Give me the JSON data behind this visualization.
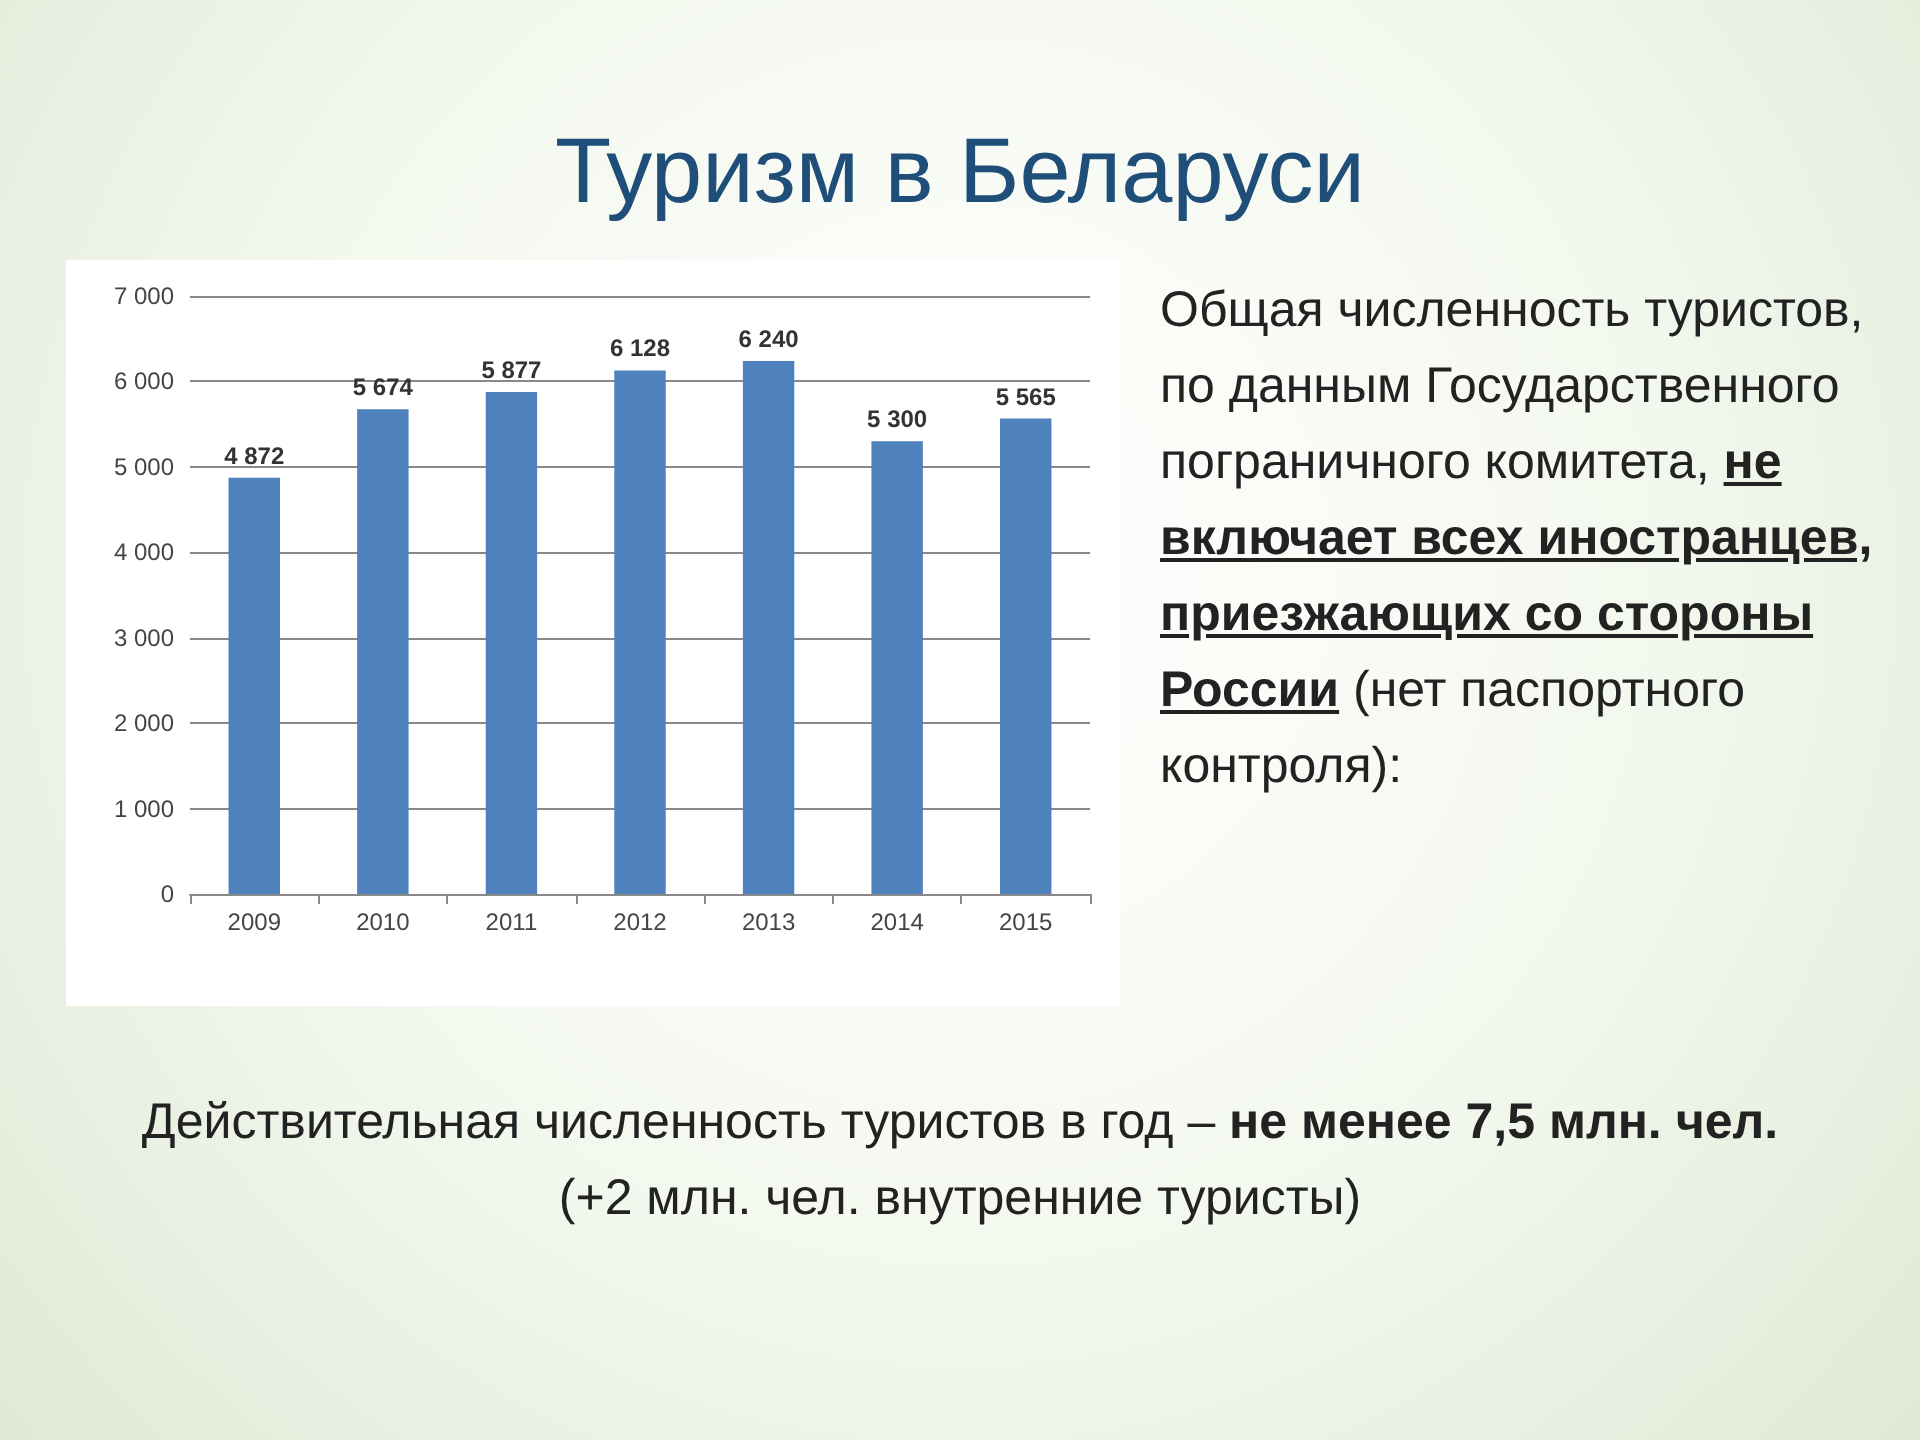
{
  "chart_data": {
    "type": "bar",
    "title": "Туризм в Беларуси",
    "categories": [
      "2009",
      "2010",
      "2011",
      "2012",
      "2013",
      "2014",
      "2015"
    ],
    "values": [
      4872,
      5674,
      5877,
      6128,
      6240,
      5300,
      5565
    ],
    "value_labels": [
      "4 872",
      "5 674",
      "5 877",
      "6 128",
      "6 240",
      "5 300",
      "5 565"
    ],
    "color": "#4f81bd",
    "ylim": [
      0,
      7000
    ],
    "yticks": [
      {
        "value": 0,
        "label": "0"
      },
      {
        "value": 1000,
        "label": "1 000"
      },
      {
        "value": 2000,
        "label": "2 000"
      },
      {
        "value": 3000,
        "label": "3 000"
      },
      {
        "value": 4000,
        "label": "4 000"
      },
      {
        "value": 5000,
        "label": "5 000"
      },
      {
        "value": 6000,
        "label": "6 000"
      },
      {
        "value": 7000,
        "label": "7 000"
      }
    ],
    "grid": "y",
    "annotations": [
      "Общая численность туристов, по данным Государственного пограничного комитета,",
      "не включает всех иностранцев, приезжающих со стороны России",
      "(нет паспортного контроля):",
      "Действительная численность туристов в год –",
      "не менее 7,5 млн. чел.",
      "(+2 млн. чел. внутренние туристы)"
    ]
  }
}
